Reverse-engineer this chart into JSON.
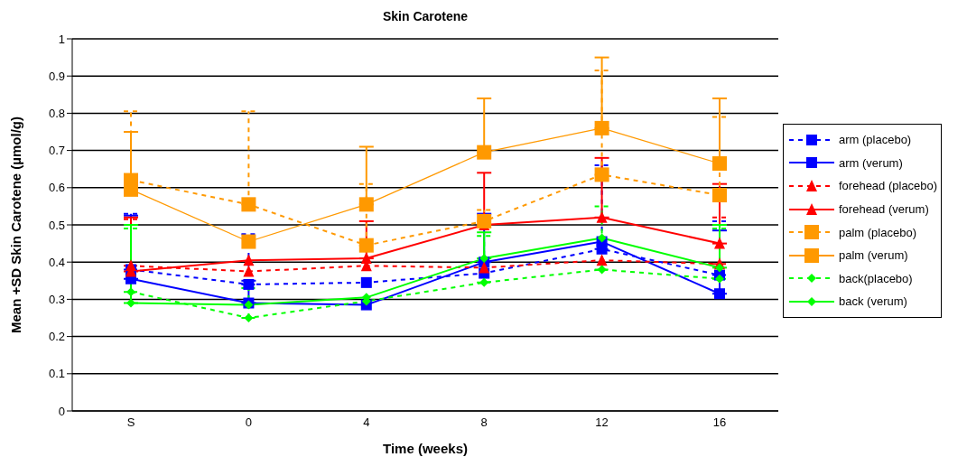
{
  "chart_data": {
    "type": "line",
    "title": "Skin Carotene",
    "xlabel": "Time (weeks)",
    "ylabel": "Mean +SD Skin Carotene (µmol/g)",
    "categories": [
      "S",
      "0",
      "4",
      "8",
      "12",
      "16"
    ],
    "ylim": [
      0,
      1
    ],
    "yticks": [
      0,
      0.1,
      0.2,
      0.3,
      0.4,
      0.5,
      0.6,
      0.7,
      0.8,
      0.9,
      1
    ],
    "grid": "y",
    "legend": "right",
    "series": [
      {
        "name": "arm (placebo)",
        "color": "#0000ff",
        "line_style": "dashed",
        "marker": "square",
        "values": [
          0.38,
          0.34,
          0.345,
          0.37,
          0.435,
          0.365
        ],
        "errors": [
          [
            0.38,
            0.53
          ],
          [
            0.34,
            0.475
          ],
          null,
          null,
          [
            0.435,
            0.66
          ],
          [
            0.365,
            0.51
          ]
        ]
      },
      {
        "name": "arm (verum)",
        "color": "#0000ff",
        "line_style": "solid",
        "marker": "square",
        "values": [
          0.355,
          0.29,
          0.285,
          0.4,
          0.455,
          0.315
        ],
        "errors": [
          [
            0.355,
            0.525
          ],
          [
            0.29,
            0.35
          ],
          null,
          [
            0.4,
            0.53
          ],
          null,
          [
            0.315,
            0.485
          ]
        ]
      },
      {
        "name": "forehead (placebo)",
        "color": "#ff0000",
        "line_style": "dashed",
        "marker": "triangle",
        "values": [
          0.39,
          0.375,
          0.39,
          0.385,
          0.405,
          0.395
        ],
        "errors": [
          [
            0.39,
            0.515
          ],
          null,
          null,
          null,
          null,
          [
            0.395,
            0.52
          ]
        ]
      },
      {
        "name": "forehead (verum)",
        "color": "#ff0000",
        "line_style": "solid",
        "marker": "triangle",
        "values": [
          0.375,
          0.405,
          0.41,
          0.5,
          0.52,
          0.45
        ],
        "errors": [
          [
            0.375,
            0.52
          ],
          null,
          [
            0.41,
            0.51
          ],
          [
            0.5,
            0.64
          ],
          [
            0.52,
            0.68
          ],
          [
            0.45,
            0.61
          ]
        ]
      },
      {
        "name": "palm (placebo)",
        "color": "#ff9900",
        "line_style": "dashed",
        "marker": "square",
        "values": [
          0.62,
          0.555,
          0.445,
          0.51,
          0.635,
          0.58
        ],
        "errors": [
          [
            0.62,
            0.805
          ],
          [
            0.555,
            0.805
          ],
          [
            0.445,
            0.61
          ],
          [
            0.51,
            0.54
          ],
          [
            0.635,
            0.915
          ],
          [
            0.58,
            0.79
          ]
        ]
      },
      {
        "name": "palm (verum)",
        "color": "#ff9900",
        "line_style": "solid",
        "marker": "square",
        "values": [
          0.595,
          0.455,
          0.555,
          0.695,
          0.76,
          0.665
        ],
        "errors": [
          [
            0.595,
            0.75
          ],
          null,
          [
            0.555,
            0.71
          ],
          [
            0.695,
            0.84
          ],
          [
            0.76,
            0.95
          ],
          [
            0.665,
            0.84
          ]
        ]
      },
      {
        "name": "back(placebo)",
        "color": "#00ff00",
        "line_style": "dashed",
        "marker": "diamond",
        "values": [
          0.32,
          0.25,
          0.295,
          0.345,
          0.38,
          0.355
        ],
        "errors": [
          [
            0.32,
            0.49
          ],
          [
            0.25,
            0.33
          ],
          null,
          [
            0.345,
            0.47
          ],
          [
            0.38,
            0.55
          ],
          [
            0.355,
            0.49
          ]
        ]
      },
      {
        "name": "back (verum)",
        "color": "#00ff00",
        "line_style": "solid",
        "marker": "diamond",
        "values": [
          0.29,
          0.285,
          0.305,
          0.41,
          0.465,
          0.385
        ],
        "errors": [
          [
            0.29,
            0.5
          ],
          null,
          null,
          [
            0.41,
            0.48
          ],
          null,
          [
            0.385,
            0.5
          ]
        ]
      }
    ]
  }
}
